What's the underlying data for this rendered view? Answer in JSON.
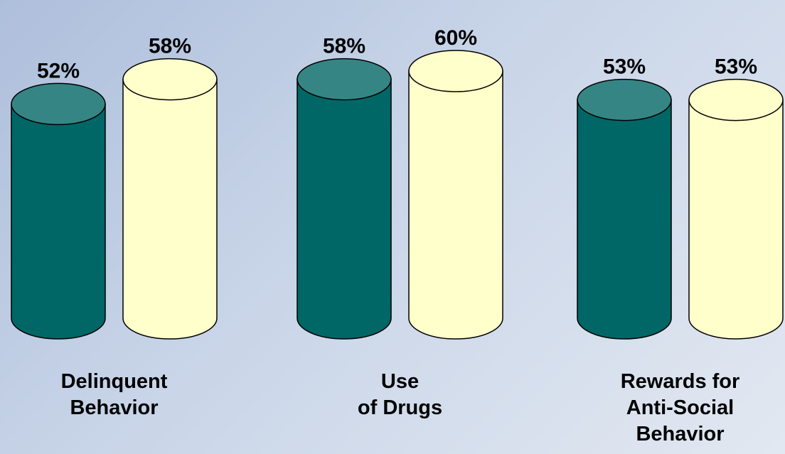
{
  "chart_data": {
    "type": "bar",
    "categories": [
      [
        "Delinquent",
        "Behavior"
      ],
      [
        "Use",
        "of Drugs"
      ],
      [
        "Rewards for",
        "Anti-Social",
        "Behavior"
      ]
    ],
    "series": [
      {
        "values": [
          52,
          58,
          53
        ],
        "labels": [
          "52%",
          "58%",
          "53%"
        ],
        "color": "#006666",
        "top_color": "#368585"
      },
      {
        "values": [
          58,
          60,
          53
        ],
        "labels": [
          "58%",
          "60%",
          "53%"
        ],
        "color": "#ffffcc",
        "top_color": "#ffffcc"
      }
    ],
    "ylim": [
      0,
      60
    ],
    "title": "",
    "xlabel": "",
    "ylabel": "",
    "grid": false,
    "legend": "none"
  }
}
